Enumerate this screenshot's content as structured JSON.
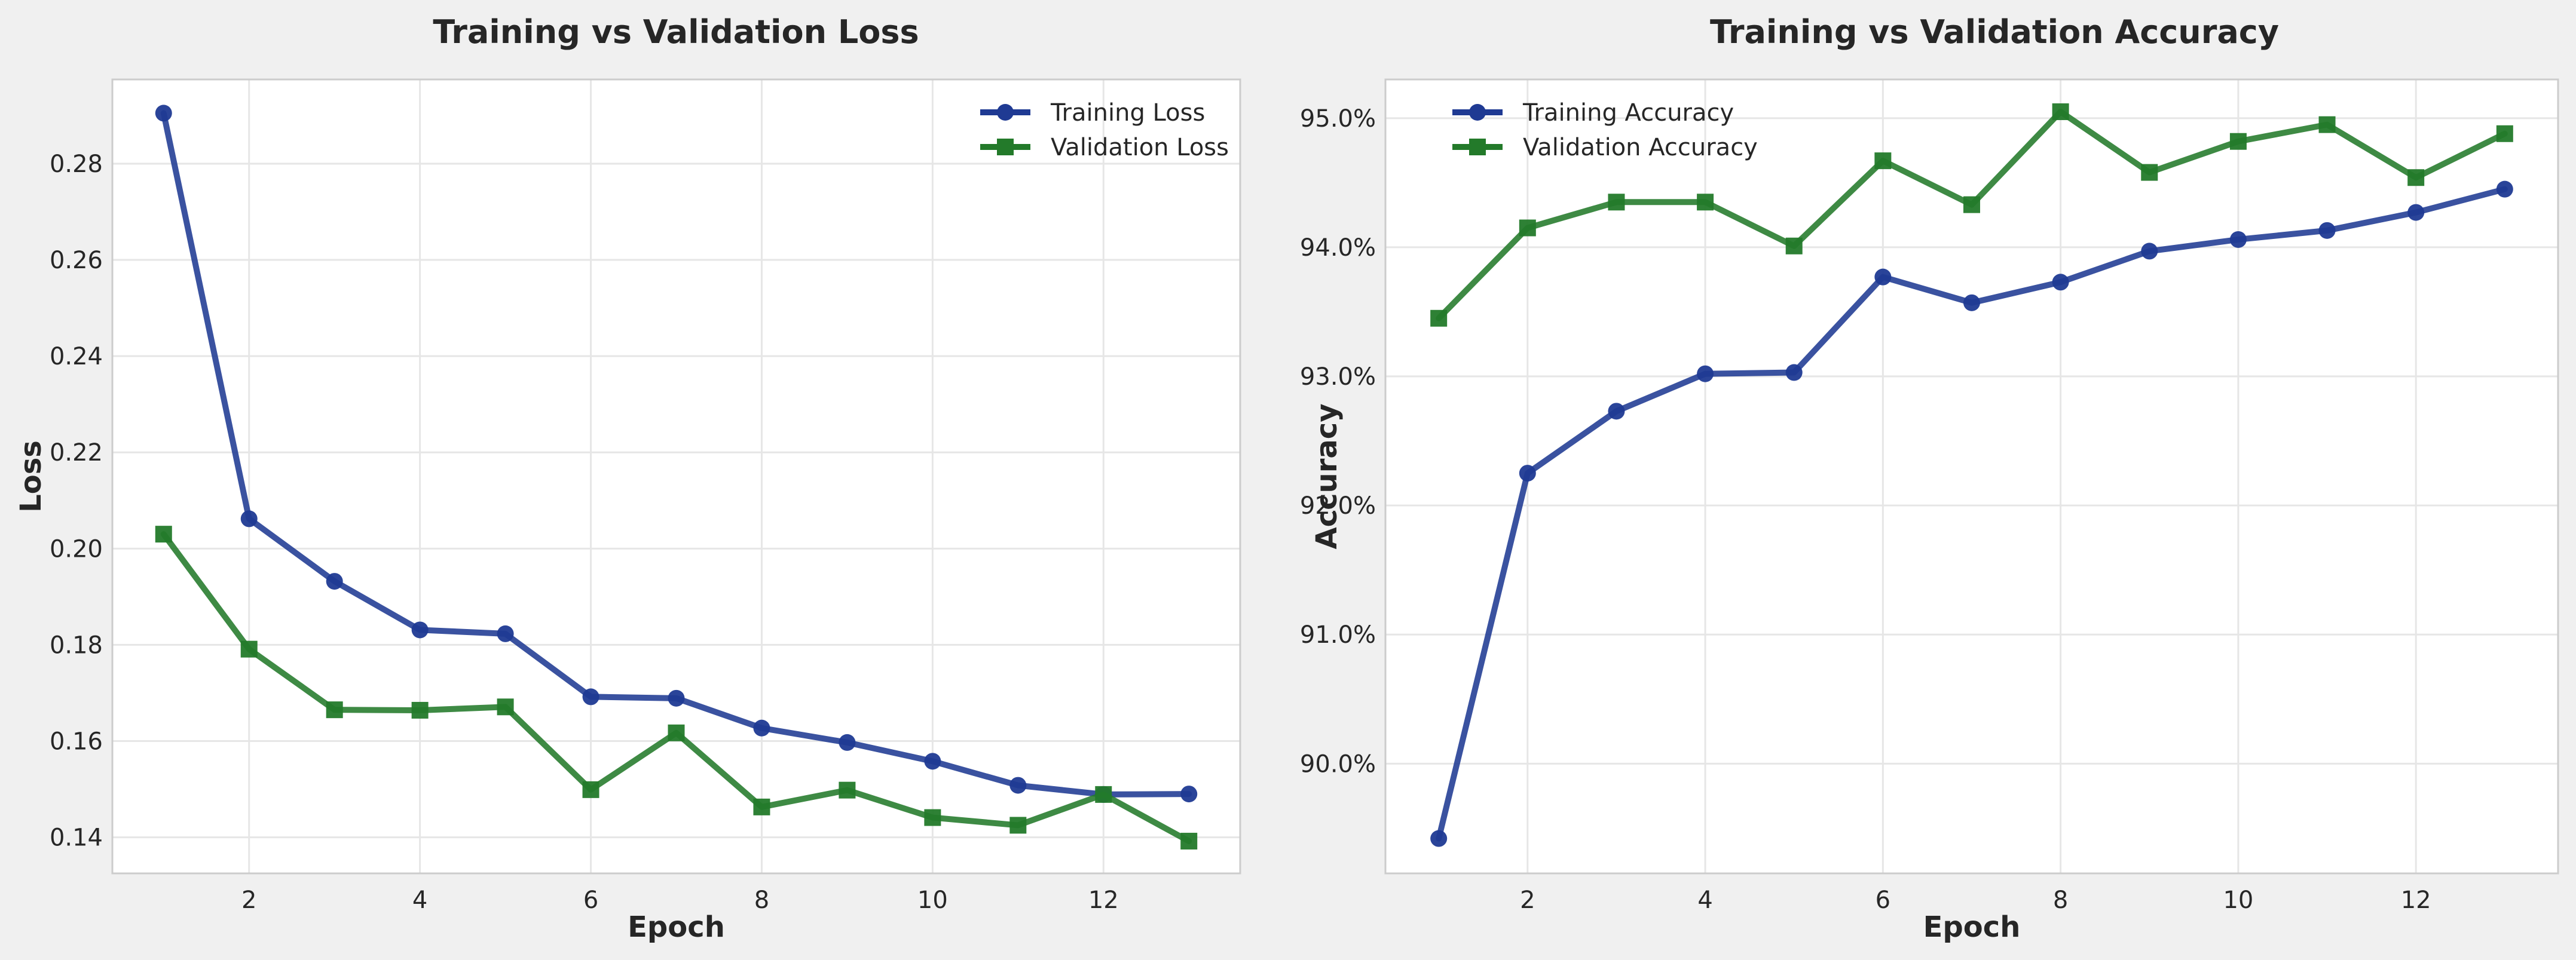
{
  "chart_data": [
    {
      "type": "line",
      "title": "Training vs Validation Loss",
      "xlabel": "Epoch",
      "ylabel": "Loss",
      "x": [
        1,
        2,
        3,
        4,
        5,
        6,
        7,
        8,
        9,
        10,
        11,
        12,
        13
      ],
      "xlim": [
        0.4,
        13.6
      ],
      "ylim": [
        0.1325,
        0.2975
      ],
      "xticks": [
        2,
        4,
        6,
        8,
        10,
        12
      ],
      "yticks": [
        0.14,
        0.16,
        0.18,
        0.2,
        0.22,
        0.24,
        0.26,
        0.28
      ],
      "ytick_labels": [
        "0.14",
        "0.16",
        "0.18",
        "0.20",
        "0.22",
        "0.24",
        "0.26",
        "0.28"
      ],
      "grid": true,
      "legend_position": "top-right",
      "series": [
        {
          "name": "Training Loss",
          "color": "#1f3a93",
          "marker": "circle",
          "values": [
            0.2905,
            0.2062,
            0.1932,
            0.1831,
            0.1823,
            0.1692,
            0.1689,
            0.1627,
            0.1597,
            0.1558,
            0.1508,
            0.1489,
            0.149
          ]
        },
        {
          "name": "Validation Loss",
          "color": "#237a2a",
          "marker": "square",
          "values": [
            0.203,
            0.1791,
            0.1665,
            0.1664,
            0.1671,
            0.1499,
            0.1617,
            0.1463,
            0.1498,
            0.1441,
            0.1425,
            0.1489,
            0.1392
          ]
        }
      ]
    },
    {
      "type": "line",
      "title": "Training vs Validation Accuracy",
      "xlabel": "Epoch",
      "ylabel": "Accuracy",
      "x": [
        1,
        2,
        3,
        4,
        5,
        6,
        7,
        8,
        9,
        10,
        11,
        12,
        13
      ],
      "xlim": [
        0.4,
        13.6
      ],
      "ylim": [
        89.15,
        95.3
      ],
      "xticks": [
        2,
        4,
        6,
        8,
        10,
        12
      ],
      "yticks": [
        90,
        91,
        92,
        93,
        94,
        95
      ],
      "ytick_labels": [
        "90.0%",
        "91.0%",
        "92.0%",
        "93.0%",
        "94.0%",
        "95.0%"
      ],
      "grid": true,
      "legend_position": "top-left",
      "series": [
        {
          "name": "Training Accuracy",
          "color": "#1f3a93",
          "marker": "circle",
          "values": [
            89.42,
            92.25,
            92.73,
            93.02,
            93.03,
            93.77,
            93.57,
            93.73,
            93.97,
            94.06,
            94.13,
            94.27,
            94.45
          ]
        },
        {
          "name": "Validation Accuracy",
          "color": "#237a2a",
          "marker": "square",
          "values": [
            93.45,
            94.15,
            94.35,
            94.35,
            94.01,
            94.67,
            94.33,
            95.05,
            94.58,
            94.82,
            94.95,
            94.54,
            94.88
          ]
        }
      ]
    }
  ]
}
